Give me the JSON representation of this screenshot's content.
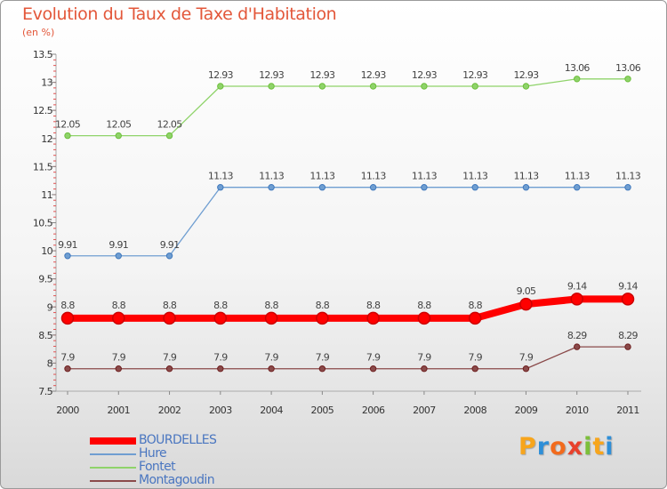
{
  "header": {
    "title": "Evolution du Taux de Taxe d'Habitation",
    "unit": "(en %)"
  },
  "brand": {
    "letters": [
      "P",
      "r",
      "o",
      "x",
      "i",
      "t",
      "i"
    ],
    "colors": [
      "#f7a51c",
      "#2e8fd8",
      "#f26b1d",
      "#e8412c",
      "#7cbf3a",
      "#f7a51c",
      "#2e8fd8"
    ]
  },
  "chart_data": {
    "type": "line",
    "title": "Evolution du Taux de Taxe d'Habitation",
    "ylabel": "(en %)",
    "xlabel": "",
    "x": [
      2000,
      2001,
      2002,
      2003,
      2004,
      2005,
      2006,
      2007,
      2008,
      2009,
      2010,
      2011
    ],
    "x_labels": [
      "2000",
      "2001",
      "2002",
      "2003",
      "2004",
      "2005",
      "2006",
      "2007",
      "2008",
      "2009",
      "2010",
      "2011"
    ],
    "ylim": [
      7.5,
      13.5
    ],
    "y_ticks": [
      7.5,
      8,
      8.5,
      9,
      9.5,
      10,
      10.5,
      11,
      11.5,
      12,
      12.5,
      13,
      13.5
    ],
    "y_tick_labels": [
      "7.5",
      "8",
      "8.5",
      "9",
      "9.5",
      "10",
      "10.5",
      "11",
      "11.5",
      "12",
      "12.5",
      "13",
      "13.5"
    ],
    "legend_position": "bottom-left",
    "series": [
      {
        "name": "BOURDELLES",
        "color": "#ff0000",
        "marker_color": "#cc0000",
        "emphasis": "thick",
        "values": [
          8.8,
          8.8,
          8.8,
          8.8,
          8.8,
          8.8,
          8.8,
          8.8,
          8.8,
          9.05,
          9.14,
          9.14
        ],
        "labels": [
          "8.8",
          "8.8",
          "8.8",
          "8.8",
          "8.8",
          "8.8",
          "8.8",
          "8.8",
          "8.8",
          "9.05",
          "9.14",
          "9.14"
        ]
      },
      {
        "name": "Hure",
        "color": "#6f9ed1",
        "marker_color": "#3f78bd",
        "emphasis": "normal",
        "values": [
          9.91,
          9.91,
          9.91,
          11.13,
          11.13,
          11.13,
          11.13,
          11.13,
          11.13,
          11.13,
          11.13,
          11.13
        ],
        "labels": [
          "9.91",
          "9.91",
          "9.91",
          "11.13",
          "11.13",
          "11.13",
          "11.13",
          "11.13",
          "11.13",
          "11.13",
          "11.13",
          "11.13"
        ]
      },
      {
        "name": "Fontet",
        "color": "#8fd36a",
        "marker_color": "#6cbf3a",
        "emphasis": "normal",
        "values": [
          12.05,
          12.05,
          12.05,
          12.93,
          12.93,
          12.93,
          12.93,
          12.93,
          12.93,
          12.93,
          13.06,
          13.06
        ],
        "labels": [
          "12.05",
          "12.05",
          "12.05",
          "12.93",
          "12.93",
          "12.93",
          "12.93",
          "12.93",
          "12.93",
          "12.93",
          "13.06",
          "13.06"
        ]
      },
      {
        "name": "Montagoudin",
        "color": "#8a4a4a",
        "marker_color": "#6e1f1f",
        "emphasis": "normal",
        "values": [
          7.9,
          7.9,
          7.9,
          7.9,
          7.9,
          7.9,
          7.9,
          7.9,
          7.9,
          7.9,
          8.29,
          8.29
        ],
        "labels": [
          "7.9",
          "7.9",
          "7.9",
          "7.9",
          "7.9",
          "7.9",
          "7.9",
          "7.9",
          "7.9",
          "7.9",
          "8.29",
          "8.29"
        ]
      }
    ]
  }
}
